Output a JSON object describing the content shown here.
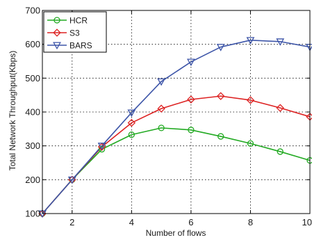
{
  "chart_data": {
    "type": "line",
    "title": "",
    "xlabel": "Number of flows",
    "ylabel": "Total Network Throughput(Kbps)",
    "xlim": [
      1,
      10
    ],
    "ylim": [
      100,
      700
    ],
    "x_ticks": [
      2,
      4,
      6,
      8,
      10
    ],
    "y_ticks": [
      100,
      200,
      300,
      400,
      500,
      600,
      700
    ],
    "x_tick_labels": [
      "2",
      "4",
      "6",
      "8",
      "10"
    ],
    "y_tick_labels": [
      "100",
      "200",
      "300",
      "400",
      "500",
      "600",
      "700"
    ],
    "grid": true,
    "legend_position": "top-left",
    "x": [
      1,
      2,
      3,
      4,
      5,
      6,
      7,
      8,
      9,
      10
    ],
    "series": [
      {
        "name": "HCR",
        "color": "#22aa22",
        "marker": "circle",
        "values": [
          100,
          200,
          290,
          333,
          353,
          347,
          328,
          307,
          283,
          257
        ]
      },
      {
        "name": "S3",
        "color": "#dd2222",
        "marker": "diamond",
        "values": [
          100,
          200,
          297,
          368,
          410,
          437,
          447,
          435,
          412,
          386
        ]
      },
      {
        "name": "BARS",
        "color": "#3d55a8",
        "marker": "triangle-down",
        "values": [
          100,
          200,
          300,
          398,
          490,
          548,
          592,
          612,
          608,
          592
        ]
      }
    ]
  }
}
